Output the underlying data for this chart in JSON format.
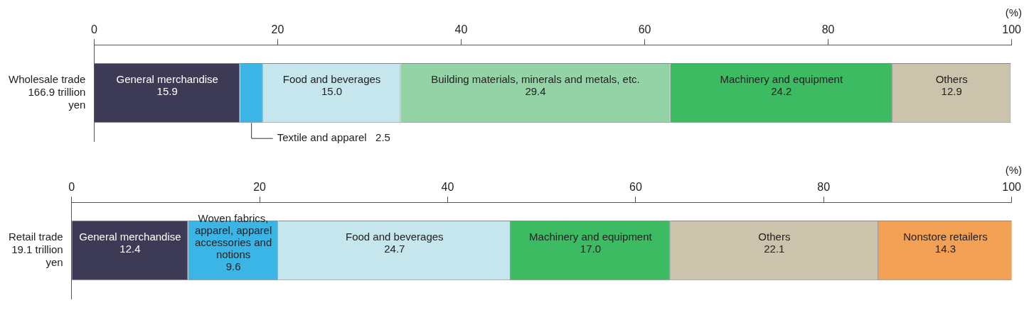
{
  "chart_data": [
    {
      "type": "bar",
      "orientation": "horizontal",
      "stacked": true,
      "categories": [
        "Wholesale trade 166.9 trillion yen"
      ],
      "xlabel": "(%)",
      "xlim": [
        0,
        100
      ],
      "xticks": [
        0,
        20,
        40,
        60,
        80,
        100
      ],
      "grid": false,
      "legend": false,
      "series": [
        {
          "name": "General merchandise",
          "color": "#3d3a55",
          "values": [
            15.9
          ],
          "value_labels": [
            "15.9"
          ]
        },
        {
          "name": "Textile and apparel",
          "color": "#3bb5e6",
          "values": [
            2.5
          ],
          "value_labels": [
            "2.5"
          ]
        },
        {
          "name": "Food and beverages",
          "color": "#c4e6ec",
          "values": [
            15.0
          ],
          "value_labels": [
            "15.0"
          ]
        },
        {
          "name": "Building materials, minerals and metals, etc.",
          "color": "#94d3a6",
          "values": [
            29.4
          ],
          "value_labels": [
            "29.4"
          ]
        },
        {
          "name": "Machinery and equipment",
          "color": "#3dbb63",
          "values": [
            24.2
          ],
          "value_labels": [
            "24.2"
          ]
        },
        {
          "name": "Others",
          "color": "#cbc3ab",
          "values": [
            12.9
          ],
          "value_labels": [
            "12.9"
          ]
        }
      ]
    },
    {
      "type": "bar",
      "orientation": "horizontal",
      "stacked": true,
      "categories": [
        "Retail trade 19.1 trillion yen"
      ],
      "xlabel": "(%)",
      "xlim": [
        0,
        100
      ],
      "xticks": [
        0,
        20,
        40,
        60,
        80,
        100
      ],
      "grid": false,
      "legend": false,
      "series": [
        {
          "name": "General merchandise",
          "color": "#3d3a55",
          "values": [
            12.4
          ],
          "value_labels": [
            "12.4"
          ]
        },
        {
          "name": "Woven fabrics, apparel, apparel accessories and notions",
          "color": "#3bb5e6",
          "values": [
            9.6
          ],
          "value_labels": [
            "9.6"
          ]
        },
        {
          "name": "Food and beverages",
          "color": "#c4e6ec",
          "values": [
            24.7
          ],
          "value_labels": [
            "24.7"
          ]
        },
        {
          "name": "Machinery and equipment",
          "color": "#3dbb63",
          "values": [
            17.0
          ],
          "value_labels": [
            "17.0"
          ]
        },
        {
          "name": "Others",
          "color": "#cbc3ab",
          "values": [
            22.1
          ],
          "value_labels": [
            "22.1"
          ]
        },
        {
          "name": "Nonstore retailers",
          "color": "#f2a054",
          "values": [
            14.3
          ],
          "value_labels": [
            "14.3"
          ]
        }
      ]
    }
  ]
}
